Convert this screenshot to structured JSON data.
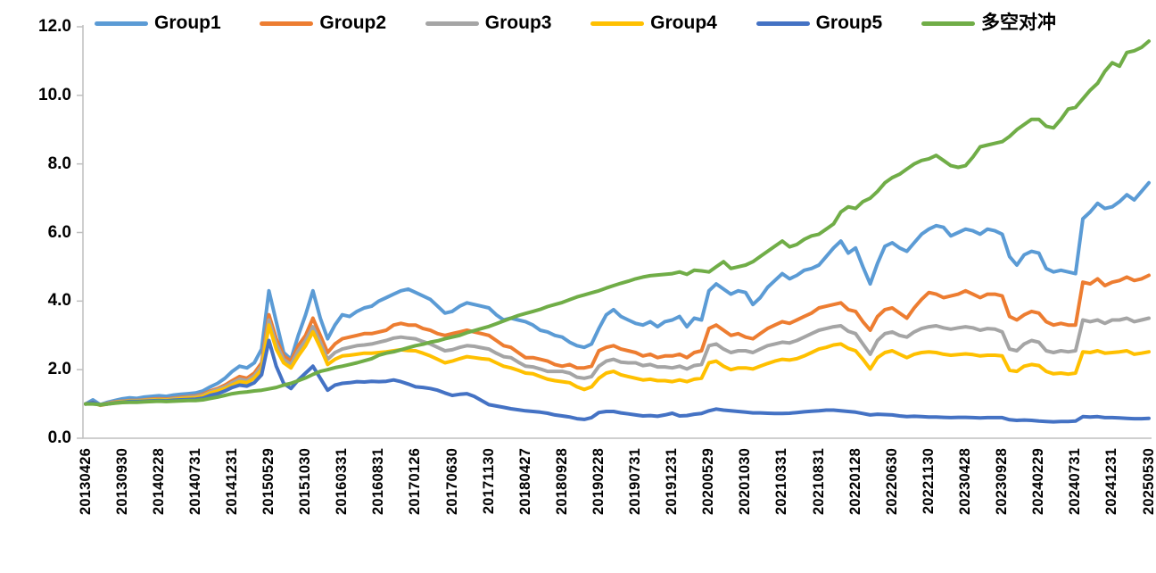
{
  "background": "#FFFFFF",
  "text_color": "#000000",
  "axis_color": "#BFBFBF",
  "chart_data": {
    "type": "line",
    "title": "",
    "xlabel": "",
    "ylabel": "",
    "ylim": [
      0,
      12
    ],
    "grid": false,
    "legend_position": "top",
    "y_tick_labels": [
      "0.0",
      "2.0",
      "4.0",
      "6.0",
      "8.0",
      "10.0",
      "12.0"
    ],
    "categories": [
      "20130426",
      "20130930",
      "20140228",
      "20140731",
      "20141231",
      "20150529",
      "20151030",
      "20160331",
      "20160831",
      "20170126",
      "20170630",
      "20171130",
      "20180427",
      "20180928",
      "20190228",
      "20190731",
      "20191231",
      "20200529",
      "20201030",
      "20210331",
      "20210831",
      "20220128",
      "20220630",
      "20221130",
      "20230428",
      "20230928",
      "20240229",
      "20240731",
      "20241231",
      "20250530"
    ],
    "points_per_tick": 5,
    "series": [
      {
        "name": "Group1",
        "color": "#5B9BD5",
        "values": [
          1.0,
          1.12,
          0.98,
          1.05,
          1.1,
          1.15,
          1.18,
          1.16,
          1.2,
          1.22,
          1.24,
          1.22,
          1.26,
          1.28,
          1.3,
          1.32,
          1.38,
          1.5,
          1.6,
          1.75,
          1.95,
          2.1,
          2.05,
          2.2,
          2.6,
          4.3,
          3.4,
          2.5,
          2.3,
          3.0,
          3.6,
          4.3,
          3.5,
          2.9,
          3.3,
          3.6,
          3.55,
          3.7,
          3.8,
          3.85,
          4.0,
          4.1,
          4.2,
          4.3,
          4.35,
          4.25,
          4.15,
          4.05,
          3.85,
          3.65,
          3.7,
          3.85,
          3.95,
          3.9,
          3.85,
          3.8,
          3.6,
          3.45,
          3.5,
          3.45,
          3.4,
          3.3,
          3.15,
          3.1,
          3.0,
          2.95,
          2.8,
          2.7,
          2.65,
          2.75,
          3.2,
          3.6,
          3.75,
          3.55,
          3.45,
          3.35,
          3.3,
          3.4,
          3.25,
          3.4,
          3.45,
          3.55,
          3.25,
          3.5,
          3.45,
          4.3,
          4.5,
          4.35,
          4.2,
          4.3,
          4.25,
          3.9,
          4.1,
          4.4,
          4.6,
          4.8,
          4.65,
          4.75,
          4.9,
          4.95,
          5.05,
          5.3,
          5.55,
          5.75,
          5.4,
          5.55,
          5.0,
          4.5,
          5.1,
          5.6,
          5.7,
          5.55,
          5.45,
          5.7,
          5.95,
          6.1,
          6.2,
          6.15,
          5.9,
          6.0,
          6.1,
          6.05,
          5.95,
          6.1,
          6.05,
          5.95,
          5.3,
          5.05,
          5.35,
          5.45,
          5.4,
          4.95,
          4.85,
          4.9,
          4.85,
          4.8,
          6.4,
          6.6,
          6.85,
          6.7,
          6.75,
          6.9,
          7.1,
          6.95,
          7.2,
          7.45
        ]
      },
      {
        "name": "Group2",
        "color": "#ED7D31",
        "values": [
          1.0,
          1.05,
          0.97,
          1.02,
          1.06,
          1.08,
          1.1,
          1.1,
          1.12,
          1.14,
          1.15,
          1.14,
          1.17,
          1.19,
          1.21,
          1.23,
          1.28,
          1.38,
          1.45,
          1.55,
          1.68,
          1.8,
          1.75,
          1.9,
          2.2,
          3.6,
          2.9,
          2.4,
          2.25,
          2.7,
          3.0,
          3.5,
          3.0,
          2.5,
          2.75,
          2.9,
          2.95,
          3.0,
          3.05,
          3.05,
          3.1,
          3.15,
          3.3,
          3.35,
          3.3,
          3.3,
          3.2,
          3.15,
          3.05,
          3.0,
          3.05,
          3.1,
          3.15,
          3.1,
          3.05,
          3.0,
          2.85,
          2.7,
          2.65,
          2.5,
          2.35,
          2.35,
          2.3,
          2.25,
          2.15,
          2.1,
          2.15,
          2.05,
          2.05,
          2.1,
          2.55,
          2.65,
          2.7,
          2.6,
          2.55,
          2.5,
          2.4,
          2.45,
          2.35,
          2.4,
          2.4,
          2.45,
          2.35,
          2.5,
          2.55,
          3.2,
          3.3,
          3.15,
          3.0,
          3.05,
          2.95,
          2.9,
          3.05,
          3.2,
          3.3,
          3.4,
          3.35,
          3.45,
          3.55,
          3.65,
          3.8,
          3.85,
          3.9,
          3.95,
          3.75,
          3.7,
          3.4,
          3.15,
          3.55,
          3.75,
          3.8,
          3.65,
          3.5,
          3.8,
          4.05,
          4.25,
          4.2,
          4.1,
          4.15,
          4.2,
          4.3,
          4.2,
          4.1,
          4.2,
          4.2,
          4.15,
          3.55,
          3.45,
          3.6,
          3.7,
          3.65,
          3.4,
          3.3,
          3.35,
          3.3,
          3.3,
          4.55,
          4.5,
          4.65,
          4.45,
          4.55,
          4.6,
          4.7,
          4.6,
          4.65,
          4.75
        ]
      },
      {
        "name": "Group3",
        "color": "#A5A5A5",
        "values": [
          1.0,
          1.04,
          0.97,
          1.01,
          1.05,
          1.07,
          1.09,
          1.09,
          1.11,
          1.12,
          1.13,
          1.12,
          1.15,
          1.17,
          1.19,
          1.21,
          1.25,
          1.35,
          1.42,
          1.5,
          1.62,
          1.72,
          1.68,
          1.82,
          2.1,
          3.45,
          2.75,
          2.3,
          2.15,
          2.55,
          2.85,
          3.25,
          2.8,
          2.3,
          2.5,
          2.6,
          2.65,
          2.7,
          2.72,
          2.75,
          2.8,
          2.85,
          2.92,
          2.95,
          2.92,
          2.9,
          2.82,
          2.75,
          2.65,
          2.55,
          2.58,
          2.65,
          2.7,
          2.68,
          2.64,
          2.6,
          2.48,
          2.38,
          2.35,
          2.22,
          2.1,
          2.08,
          2.02,
          1.95,
          1.95,
          1.95,
          1.9,
          1.78,
          1.75,
          1.8,
          2.1,
          2.25,
          2.3,
          2.22,
          2.2,
          2.2,
          2.12,
          2.15,
          2.08,
          2.08,
          2.05,
          2.1,
          2.02,
          2.12,
          2.15,
          2.7,
          2.75,
          2.6,
          2.5,
          2.55,
          2.55,
          2.5,
          2.6,
          2.7,
          2.75,
          2.8,
          2.78,
          2.85,
          2.95,
          3.05,
          3.15,
          3.2,
          3.25,
          3.28,
          3.12,
          3.05,
          2.75,
          2.45,
          2.85,
          3.05,
          3.1,
          3.0,
          2.95,
          3.1,
          3.2,
          3.25,
          3.28,
          3.22,
          3.18,
          3.22,
          3.25,
          3.22,
          3.15,
          3.2,
          3.18,
          3.1,
          2.6,
          2.55,
          2.75,
          2.85,
          2.8,
          2.55,
          2.5,
          2.55,
          2.52,
          2.55,
          3.45,
          3.4,
          3.45,
          3.35,
          3.45,
          3.45,
          3.5,
          3.4,
          3.45,
          3.5
        ]
      },
      {
        "name": "Group4",
        "color": "#FFC000",
        "values": [
          1.0,
          1.03,
          0.96,
          1.0,
          1.04,
          1.06,
          1.08,
          1.08,
          1.1,
          1.11,
          1.12,
          1.11,
          1.13,
          1.15,
          1.17,
          1.18,
          1.22,
          1.32,
          1.38,
          1.45,
          1.55,
          1.65,
          1.62,
          1.75,
          2.0,
          3.3,
          2.6,
          2.2,
          2.05,
          2.4,
          2.7,
          3.1,
          2.65,
          2.15,
          2.3,
          2.4,
          2.42,
          2.45,
          2.48,
          2.48,
          2.5,
          2.52,
          2.55,
          2.58,
          2.56,
          2.55,
          2.48,
          2.4,
          2.3,
          2.2,
          2.25,
          2.32,
          2.38,
          2.35,
          2.32,
          2.3,
          2.2,
          2.1,
          2.05,
          1.98,
          1.9,
          1.88,
          1.8,
          1.72,
          1.68,
          1.65,
          1.62,
          1.5,
          1.42,
          1.5,
          1.75,
          1.9,
          1.95,
          1.85,
          1.8,
          1.75,
          1.7,
          1.72,
          1.68,
          1.68,
          1.65,
          1.7,
          1.65,
          1.72,
          1.75,
          2.2,
          2.25,
          2.1,
          2.0,
          2.05,
          2.05,
          2.02,
          2.1,
          2.18,
          2.25,
          2.3,
          2.28,
          2.32,
          2.4,
          2.5,
          2.6,
          2.65,
          2.72,
          2.75,
          2.62,
          2.55,
          2.3,
          2.02,
          2.35,
          2.5,
          2.55,
          2.45,
          2.35,
          2.45,
          2.5,
          2.52,
          2.5,
          2.45,
          2.42,
          2.44,
          2.46,
          2.44,
          2.4,
          2.42,
          2.42,
          2.4,
          1.98,
          1.95,
          2.1,
          2.15,
          2.12,
          1.95,
          1.88,
          1.9,
          1.87,
          1.9,
          2.52,
          2.5,
          2.55,
          2.48,
          2.5,
          2.52,
          2.55,
          2.45,
          2.48,
          2.52
        ]
      },
      {
        "name": "Group5",
        "color": "#4472C4",
        "values": [
          1.0,
          1.04,
          0.97,
          1.0,
          1.03,
          1.05,
          1.07,
          1.07,
          1.08,
          1.09,
          1.1,
          1.09,
          1.11,
          1.12,
          1.13,
          1.14,
          1.17,
          1.25,
          1.3,
          1.38,
          1.48,
          1.55,
          1.52,
          1.62,
          1.85,
          2.85,
          2.1,
          1.6,
          1.45,
          1.7,
          1.9,
          2.1,
          1.75,
          1.4,
          1.55,
          1.6,
          1.62,
          1.65,
          1.64,
          1.66,
          1.65,
          1.66,
          1.7,
          1.65,
          1.58,
          1.5,
          1.48,
          1.45,
          1.4,
          1.32,
          1.25,
          1.28,
          1.3,
          1.22,
          1.1,
          0.98,
          0.94,
          0.9,
          0.86,
          0.83,
          0.8,
          0.78,
          0.76,
          0.73,
          0.68,
          0.65,
          0.62,
          0.57,
          0.55,
          0.6,
          0.75,
          0.78,
          0.78,
          0.74,
          0.71,
          0.68,
          0.65,
          0.66,
          0.64,
          0.68,
          0.73,
          0.65,
          0.66,
          0.7,
          0.72,
          0.8,
          0.85,
          0.82,
          0.8,
          0.78,
          0.76,
          0.74,
          0.74,
          0.73,
          0.72,
          0.72,
          0.73,
          0.75,
          0.77,
          0.79,
          0.8,
          0.82,
          0.82,
          0.8,
          0.78,
          0.76,
          0.72,
          0.68,
          0.7,
          0.69,
          0.68,
          0.65,
          0.63,
          0.64,
          0.63,
          0.62,
          0.62,
          0.61,
          0.6,
          0.61,
          0.61,
          0.6,
          0.59,
          0.6,
          0.6,
          0.6,
          0.54,
          0.52,
          0.53,
          0.52,
          0.5,
          0.49,
          0.48,
          0.49,
          0.49,
          0.5,
          0.63,
          0.62,
          0.63,
          0.6,
          0.6,
          0.59,
          0.58,
          0.57,
          0.57,
          0.58
        ]
      },
      {
        "name": "多空对冲",
        "color": "#70AD47",
        "values": [
          1.0,
          1.0,
          0.98,
          1.0,
          1.02,
          1.04,
          1.05,
          1.05,
          1.06,
          1.07,
          1.08,
          1.07,
          1.08,
          1.09,
          1.1,
          1.1,
          1.12,
          1.16,
          1.2,
          1.25,
          1.3,
          1.33,
          1.35,
          1.38,
          1.4,
          1.44,
          1.48,
          1.55,
          1.6,
          1.68,
          1.76,
          1.86,
          1.95,
          2.0,
          2.06,
          2.1,
          2.15,
          2.2,
          2.26,
          2.32,
          2.42,
          2.48,
          2.52,
          2.58,
          2.64,
          2.7,
          2.74,
          2.8,
          2.84,
          2.9,
          2.95,
          3.0,
          3.08,
          3.14,
          3.2,
          3.26,
          3.34,
          3.42,
          3.5,
          3.58,
          3.64,
          3.7,
          3.76,
          3.84,
          3.9,
          3.96,
          4.04,
          4.12,
          4.18,
          4.24,
          4.3,
          4.38,
          4.45,
          4.52,
          4.58,
          4.65,
          4.7,
          4.74,
          4.76,
          4.78,
          4.8,
          4.85,
          4.78,
          4.9,
          4.88,
          4.85,
          5.0,
          5.15,
          4.95,
          5.0,
          5.05,
          5.15,
          5.3,
          5.45,
          5.6,
          5.75,
          5.58,
          5.65,
          5.8,
          5.9,
          5.95,
          6.1,
          6.25,
          6.6,
          6.75,
          6.7,
          6.9,
          7.0,
          7.2,
          7.45,
          7.6,
          7.7,
          7.85,
          8.0,
          8.1,
          8.15,
          8.25,
          8.1,
          7.95,
          7.9,
          7.95,
          8.2,
          8.5,
          8.55,
          8.6,
          8.65,
          8.8,
          9.0,
          9.15,
          9.3,
          9.3,
          9.1,
          9.05,
          9.3,
          9.6,
          9.65,
          9.9,
          10.15,
          10.35,
          10.7,
          10.95,
          10.85,
          11.25,
          11.3,
          11.4,
          11.58
        ]
      }
    ]
  }
}
